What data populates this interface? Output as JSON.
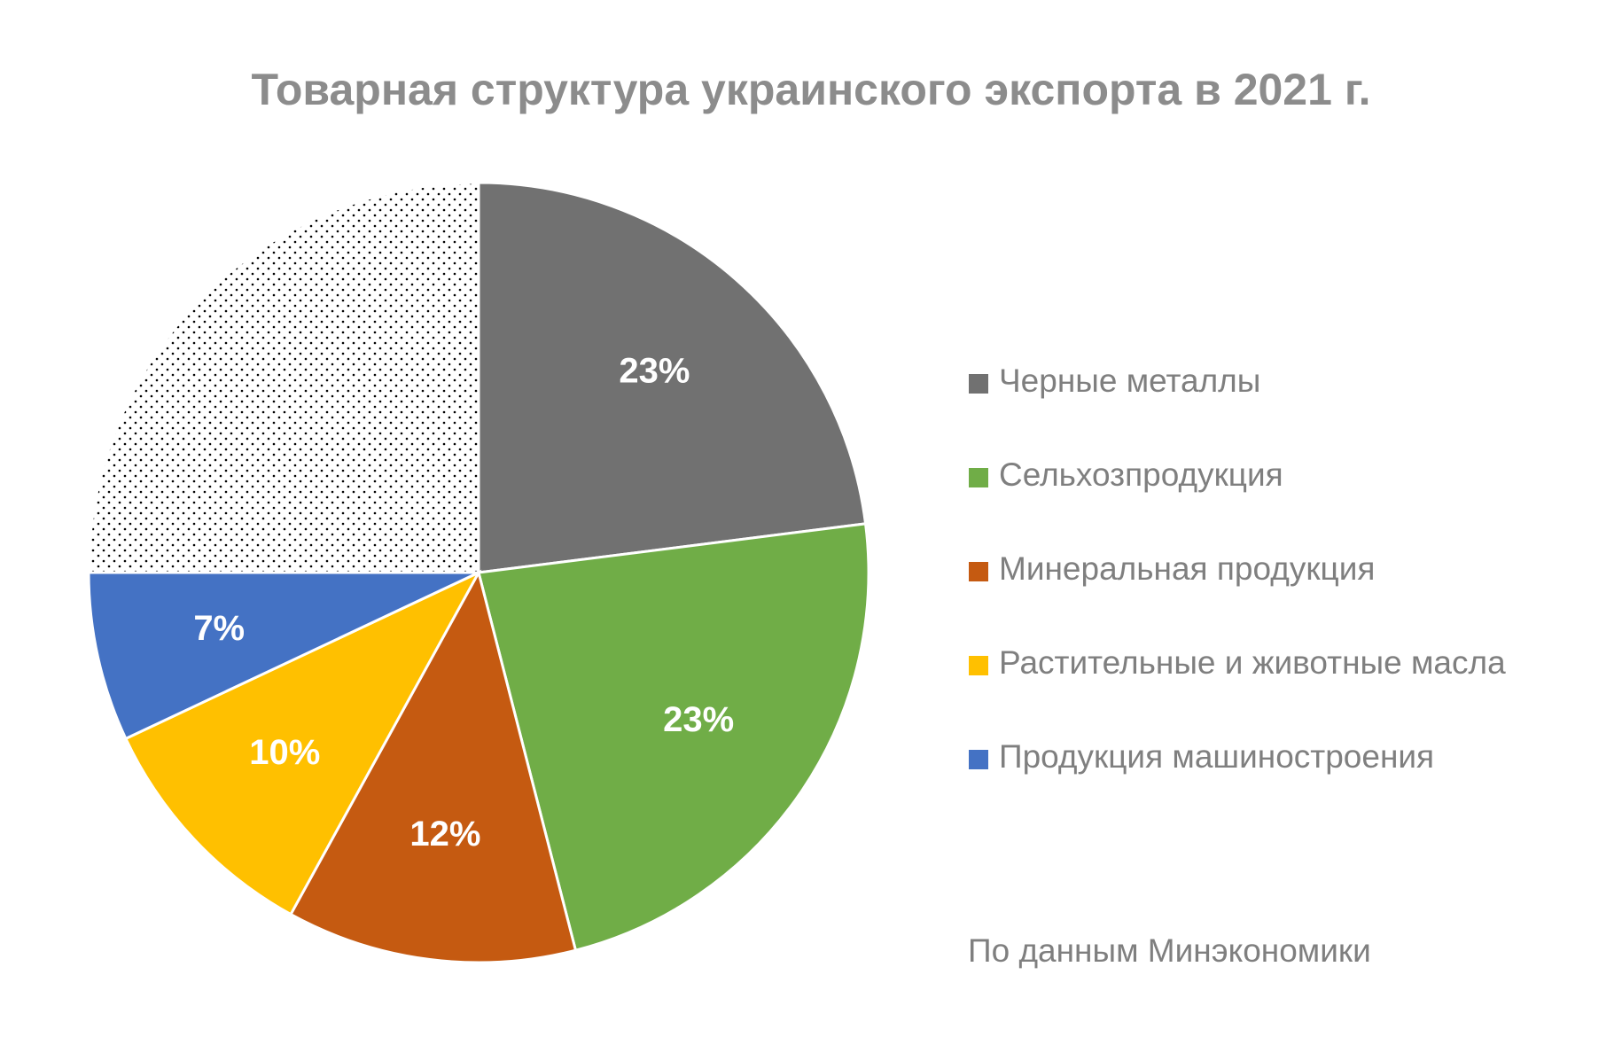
{
  "chart_data": {
    "type": "pie",
    "title": "Товарная структура украинского экспорта в 2021 г.",
    "slices": [
      {
        "name": "Черные металлы",
        "value": 23,
        "label": "23%",
        "color": "#717171",
        "pattern": "solid",
        "in_legend": true
      },
      {
        "name": "Сельхозпродукция",
        "value": 23,
        "label": "23%",
        "color": "#70ad47",
        "pattern": "solid",
        "in_legend": true
      },
      {
        "name": "Минеральная продукция",
        "value": 12,
        "label": "12%",
        "color": "#c55a11",
        "pattern": "solid",
        "in_legend": true
      },
      {
        "name": "Растительные и животные масла",
        "value": 10,
        "label": "10%",
        "color": "#ffc000",
        "pattern": "solid",
        "in_legend": true
      },
      {
        "name": "Продукция машиностроения",
        "value": 7,
        "label": "7%",
        "color": "#4472c4",
        "pattern": "solid",
        "in_legend": true
      },
      {
        "name": "",
        "value": 25,
        "label": "",
        "color": "#ffffff",
        "pattern": "dots",
        "in_legend": false
      }
    ],
    "start_angle_deg": 0,
    "direction": "clockwise",
    "legend_position": "right"
  },
  "footer": {
    "source": "По данным Минэкономики"
  }
}
